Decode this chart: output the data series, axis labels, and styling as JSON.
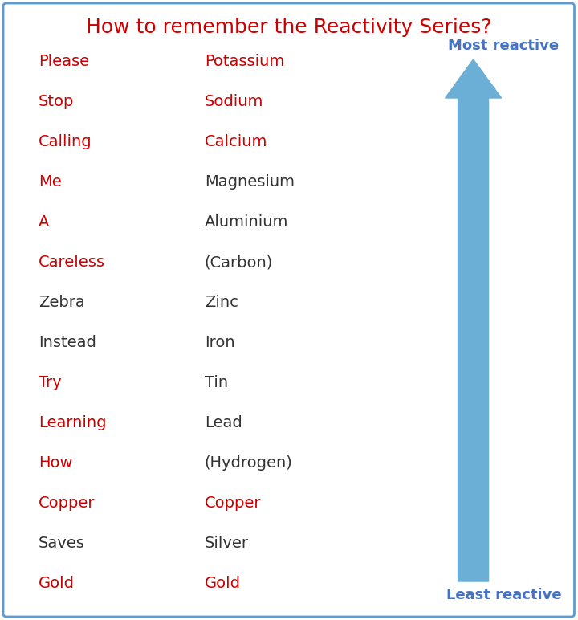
{
  "title": "How to remember the Reactivity Series?",
  "title_color": "#cc0000",
  "title_fontsize": 18,
  "background_color": "#ffffff",
  "border_color": "#5b9bd5",
  "mnemonics": [
    "Please",
    "Stop",
    "Calling",
    "Me",
    "A",
    "Careless",
    "Zebra",
    "Instead",
    "Try",
    "Learning",
    "How",
    "Copper",
    "Saves",
    "Gold"
  ],
  "elements": [
    "Potassium",
    "Sodium",
    "Calcium",
    "Magnesium",
    "Aluminium",
    "(Carbon)",
    "Zinc",
    "Iron",
    "Tin",
    "Lead",
    "(Hydrogen)",
    "Copper",
    "Silver",
    "Gold"
  ],
  "mnemonic_colors": [
    "#cc0000",
    "#cc0000",
    "#cc0000",
    "#cc0000",
    "#cc0000",
    "#cc0000",
    "#333333",
    "#333333",
    "#cc0000",
    "#cc0000",
    "#cc0000",
    "#cc0000",
    "#333333",
    "#cc0000"
  ],
  "element_colors": [
    "#cc0000",
    "#cc0000",
    "#cc0000",
    "#333333",
    "#333333",
    "#333333",
    "#333333",
    "#333333",
    "#333333",
    "#333333",
    "#333333",
    "#cc0000",
    "#333333",
    "#cc0000"
  ],
  "arrow_color": "#6baed6",
  "most_reactive_label": "Most reactive",
  "least_reactive_label": "Least reactive",
  "label_color": "#4472c4",
  "label_fontsize": 13,
  "text_fontsize": 14
}
